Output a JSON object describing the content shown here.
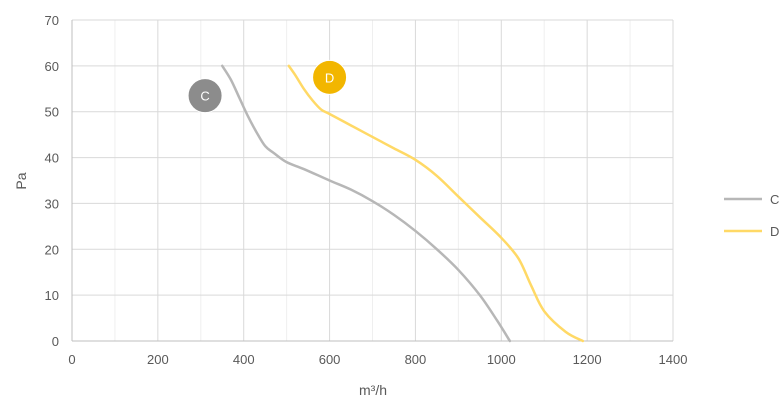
{
  "chart_data": {
    "type": "line",
    "title": "",
    "xlabel": "m³/h",
    "ylabel": "Pa",
    "xlim": [
      0,
      1400
    ],
    "ylim": [
      0,
      70
    ],
    "x_ticks": [
      0,
      200,
      400,
      600,
      800,
      1000,
      1200,
      1400
    ],
    "y_ticks": [
      0,
      10,
      20,
      30,
      40,
      50,
      60,
      70
    ],
    "x_tick_labels": [
      "0",
      "200",
      "400",
      "600",
      "800",
      "1000",
      "1200",
      "1400"
    ],
    "y_tick_labels": [
      "0",
      "10",
      "20",
      "30",
      "40",
      "50",
      "60",
      "70"
    ],
    "grid": true,
    "legend_position": "right",
    "series": [
      {
        "name": "C",
        "color": "#b7b7b7",
        "marker_label": "C",
        "marker_color": "#8c8c8c",
        "marker_point": [
          310,
          53.5
        ],
        "points": [
          [
            350,
            60
          ],
          [
            370,
            57
          ],
          [
            390,
            53
          ],
          [
            410,
            49
          ],
          [
            430,
            45.5
          ],
          [
            450,
            42.5
          ],
          [
            470,
            41
          ],
          [
            500,
            39
          ],
          [
            540,
            37.5
          ],
          [
            600,
            35
          ],
          [
            650,
            33
          ],
          [
            700,
            30.5
          ],
          [
            750,
            27.5
          ],
          [
            800,
            24
          ],
          [
            850,
            20
          ],
          [
            900,
            15.5
          ],
          [
            950,
            10
          ],
          [
            990,
            4.5
          ],
          [
            1020,
            0
          ]
        ]
      },
      {
        "name": "D",
        "color": "#ffd966",
        "marker_label": "D",
        "marker_color": "#f2b600",
        "marker_point": [
          600,
          57.5
        ],
        "points": [
          [
            505,
            60
          ],
          [
            520,
            58
          ],
          [
            540,
            55
          ],
          [
            560,
            52.5
          ],
          [
            580,
            50.5
          ],
          [
            600,
            49.5
          ],
          [
            650,
            47
          ],
          [
            700,
            44.5
          ],
          [
            750,
            42
          ],
          [
            800,
            39.5
          ],
          [
            850,
            36
          ],
          [
            900,
            31.5
          ],
          [
            950,
            27
          ],
          [
            1000,
            22.5
          ],
          [
            1040,
            18
          ],
          [
            1070,
            12
          ],
          [
            1100,
            6.5
          ],
          [
            1150,
            2
          ],
          [
            1190,
            0
          ]
        ]
      }
    ]
  }
}
